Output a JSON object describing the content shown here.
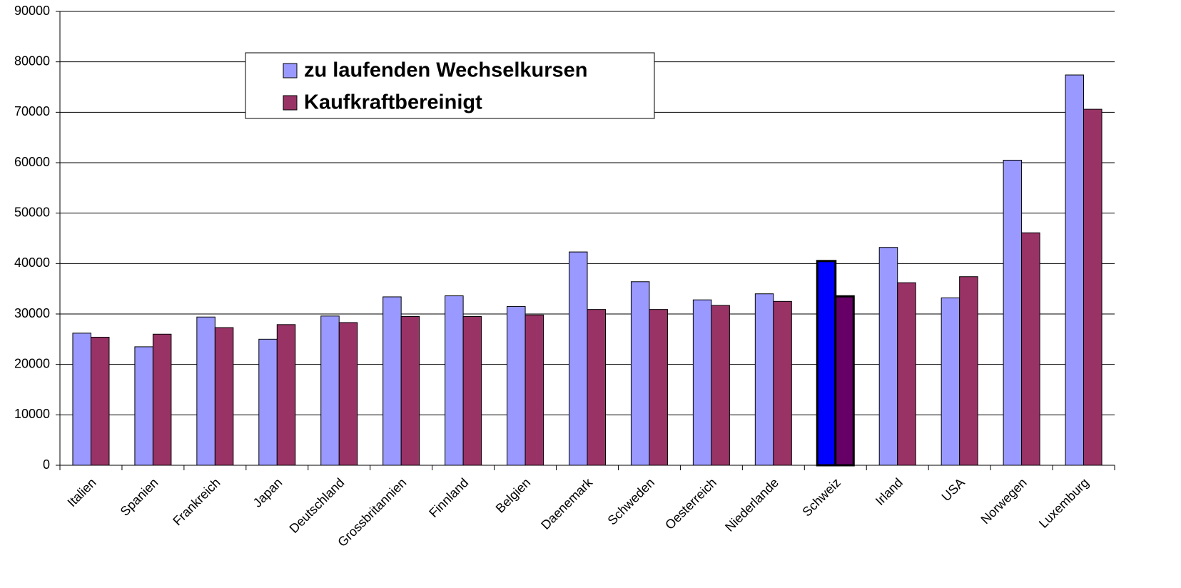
{
  "chart_data": {
    "type": "bar",
    "categories": [
      "Italien",
      "Spanien",
      "Frankreich",
      "Japan",
      "Deutschland",
      "Grossbritannien",
      "Finnland",
      "Belgien",
      "Daenemark",
      "Schweden",
      "Oesterreich",
      "Niederlande",
      "Schweiz",
      "Irland",
      "USA",
      "Norwegen",
      "Luxemburg"
    ],
    "series": [
      {
        "name": "zu laufenden Wechselkursen",
        "color": "#9999ff",
        "point_colors": {
          "12": "#0000ff"
        },
        "values": [
          26200,
          23500,
          29400,
          25000,
          29600,
          33400,
          33600,
          31500,
          42300,
          36400,
          32800,
          34000,
          40500,
          43200,
          33200,
          60500,
          77400
        ]
      },
      {
        "name": "Kaufkraftbereinigt",
        "color": "#993366",
        "point_colors": {
          "12": "#660066"
        },
        "values": [
          25400,
          26000,
          27300,
          27900,
          28300,
          29500,
          29500,
          29800,
          30900,
          30900,
          31700,
          32500,
          33500,
          36200,
          37400,
          46100,
          70600
        ]
      }
    ],
    "ylim": [
      0,
      90000
    ],
    "yticks": [
      0,
      10000,
      20000,
      30000,
      40000,
      50000,
      60000,
      70000,
      80000,
      90000
    ],
    "grid": true,
    "legend": "top-left"
  }
}
